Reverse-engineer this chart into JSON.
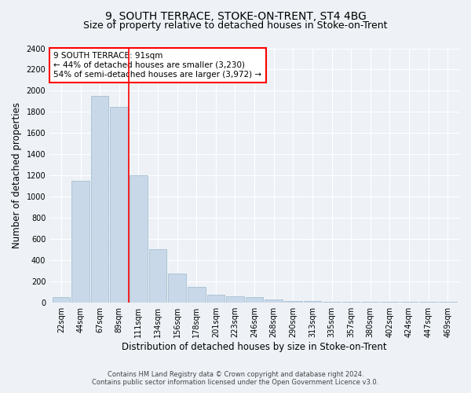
{
  "title": "9, SOUTH TERRACE, STOKE-ON-TRENT, ST4 4BG",
  "subtitle": "Size of property relative to detached houses in Stoke-on-Trent",
  "xlabel": "Distribution of detached houses by size in Stoke-on-Trent",
  "ylabel": "Number of detached properties",
  "footer_line1": "Contains HM Land Registry data © Crown copyright and database right 2024.",
  "footer_line2": "Contains public sector information licensed under the Open Government Licence v3.0.",
  "categories": [
    "22sqm",
    "44sqm",
    "67sqm",
    "89sqm",
    "111sqm",
    "134sqm",
    "156sqm",
    "178sqm",
    "201sqm",
    "223sqm",
    "246sqm",
    "268sqm",
    "290sqm",
    "313sqm",
    "335sqm",
    "357sqm",
    "380sqm",
    "402sqm",
    "424sqm",
    "447sqm",
    "469sqm"
  ],
  "values": [
    50,
    1150,
    1950,
    1850,
    1200,
    500,
    270,
    150,
    75,
    55,
    50,
    30,
    15,
    10,
    8,
    5,
    4,
    3,
    2,
    2,
    2
  ],
  "bar_color": "#c8d8e8",
  "bar_edgecolor": "#9ab8cc",
  "redline_x": 3.5,
  "annotation_line1": "9 SOUTH TERRACE: 91sqm",
  "annotation_line2": "← 44% of detached houses are smaller (3,230)",
  "annotation_line3": "54% of semi-detached houses are larger (3,972) →",
  "ylim": [
    0,
    2400
  ],
  "yticks": [
    0,
    200,
    400,
    600,
    800,
    1000,
    1200,
    1400,
    1600,
    1800,
    2000,
    2200,
    2400
  ],
  "background_color": "#eef2f7",
  "grid_color": "#ffffff",
  "title_fontsize": 10,
  "subtitle_fontsize": 9,
  "axis_label_fontsize": 8.5,
  "tick_fontsize": 7,
  "footer_fontsize": 6
}
